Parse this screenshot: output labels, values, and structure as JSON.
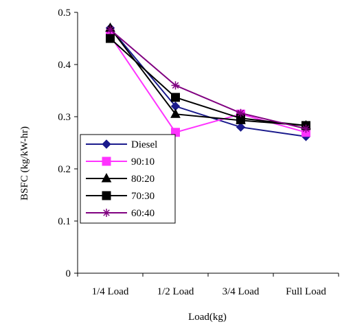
{
  "chart_data": {
    "type": "line",
    "categories": [
      "1/4 Load",
      "1/2 Load",
      "3/4 Load",
      "Full Load"
    ],
    "xlabel": "Load(kg)",
    "ylabel": "BSFC (kg/kW-hr)",
    "ylim": [
      0,
      0.5
    ],
    "yticks": [
      "0",
      "0.1",
      "0.2",
      "0.3",
      "0.4",
      "0.5"
    ],
    "grid": false,
    "legend_position": "bottom-left",
    "series": [
      {
        "name": "Diesel",
        "values": [
          0.47,
          0.32,
          0.28,
          0.262
        ],
        "color": "#1a1a8c",
        "marker": "diamond"
      },
      {
        "name": "90:10",
        "values": [
          0.455,
          0.27,
          0.305,
          0.27
        ],
        "color": "#ff33ff",
        "marker": "square"
      },
      {
        "name": "80:20",
        "values": [
          0.47,
          0.305,
          0.293,
          0.283
        ],
        "color": "#000000",
        "marker": "triangle"
      },
      {
        "name": "70:30",
        "values": [
          0.45,
          0.337,
          0.297,
          0.283
        ],
        "color": "#000000",
        "marker": "square"
      },
      {
        "name": "60:40",
        "values": [
          0.467,
          0.36,
          0.307,
          0.277
        ],
        "color": "#800080",
        "marker": "star"
      }
    ]
  }
}
